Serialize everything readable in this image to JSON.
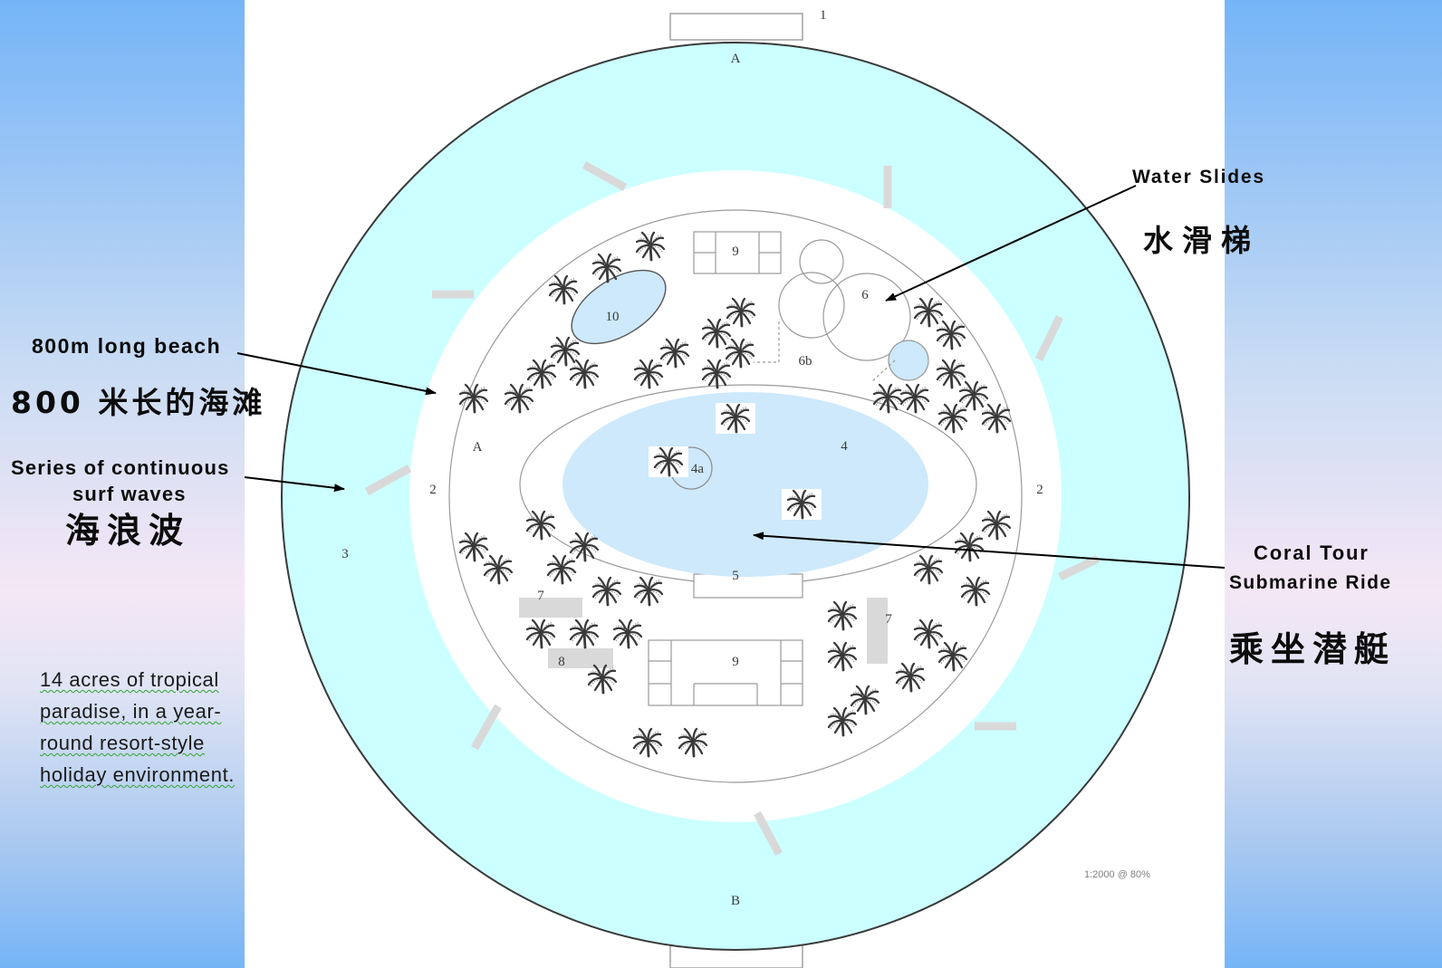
{
  "slide": {
    "left_annotations": {
      "beach_en": "800m long beach",
      "beach_zh": "800 米长的海滩",
      "waves_en_line1": "Series of continuous",
      "waves_en_line2": "surf waves",
      "waves_zh": "海浪波",
      "description_lines": [
        "14 acres of tropical",
        "paradise, in a year-",
        "round resort-style",
        "holiday environment."
      ]
    },
    "right_annotations": {
      "slides_en": "Water Slides",
      "slides_zh": "水滑梯",
      "submarine_en_line1": "Coral Tour",
      "submarine_en_line2": "Submarine Ride",
      "submarine_zh": "乘坐潜艇"
    }
  },
  "plan": {
    "labels": {
      "top_structure": "1",
      "gate_top": "A",
      "gate_left": "A",
      "gate_bottom": "B",
      "beach_left": "2",
      "beach_right": "2",
      "surf_ring": "3",
      "lagoon": "4",
      "lagoon_island": "4a",
      "lagoon_dock": "5",
      "slides_area": "6",
      "slides_pool": "6b",
      "grey_block_left": "7",
      "grey_block_right": "7",
      "grey_block_small": "8",
      "building_top": "9",
      "building_bottom": "9",
      "pond": "10"
    },
    "scale_note": "1:2000 @ 80%"
  },
  "colors": {
    "panel_blue": "#75b5f7",
    "panel_pink": "#f5e7f5",
    "surf_ring": "#ccffff",
    "water": "#cde9fb",
    "marker_bar": "#d9d9d9",
    "underline": "#2fa52f"
  }
}
